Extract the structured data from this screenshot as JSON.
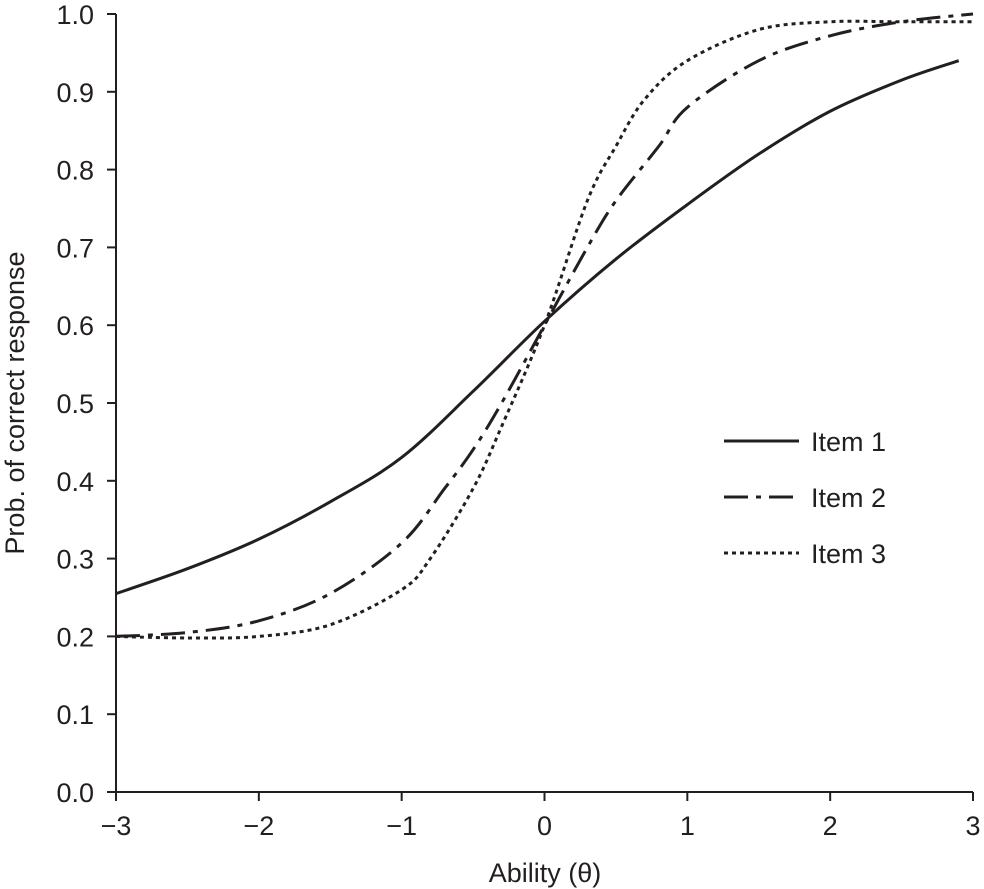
{
  "chart_data": {
    "type": "line",
    "title": "",
    "xlabel": "Ability (θ)",
    "ylabel": "Prob. of correct response",
    "xlim": [
      -3,
      3
    ],
    "ylim": [
      0,
      1
    ],
    "x_ticks": [
      -3,
      -2,
      -1,
      0,
      1,
      2,
      3
    ],
    "x_tick_labels": [
      "−3",
      "−2",
      "−1",
      "0",
      "1",
      "2",
      "3"
    ],
    "y_ticks": [
      0,
      0.1,
      0.2,
      0.3,
      0.4,
      0.5,
      0.6,
      0.7,
      0.8,
      0.9,
      1.0
    ],
    "y_tick_labels": [
      "0.0",
      "0.1",
      "0.2",
      "0.3",
      "0.4",
      "0.5",
      "0.6",
      "0.7",
      "0.8",
      "0.9",
      "1.0"
    ],
    "grid": false,
    "legend_position": "right",
    "series": [
      {
        "name": "Item 1",
        "style": "solid",
        "x": [
          -3,
          -2.5,
          -2,
          -1.5,
          -1,
          -0.5,
          0,
          0.5,
          1,
          1.5,
          2,
          2.5,
          2.9
        ],
        "y": [
          0.255,
          0.287,
          0.325,
          0.373,
          0.43,
          0.515,
          0.605,
          0.685,
          0.755,
          0.82,
          0.875,
          0.915,
          0.94
        ]
      },
      {
        "name": "Item 2",
        "style": "dashdot",
        "x": [
          -3,
          -2.5,
          -2,
          -1.5,
          -1,
          -0.7,
          -0.5,
          -0.3,
          0,
          0.3,
          0.5,
          0.8,
          1,
          1.5,
          2,
          2.5,
          3
        ],
        "y": [
          0.2,
          0.205,
          0.22,
          0.255,
          0.32,
          0.39,
          0.44,
          0.5,
          0.6,
          0.7,
          0.76,
          0.83,
          0.88,
          0.94,
          0.972,
          0.99,
          1.0
        ]
      },
      {
        "name": "Item 3",
        "style": "dotted",
        "x": [
          -3,
          -2.5,
          -2,
          -1.5,
          -1,
          -0.8,
          -0.5,
          -0.3,
          0,
          0.3,
          0.5,
          0.7,
          1,
          1.5,
          2,
          2.5,
          3
        ],
        "y": [
          0.2,
          0.198,
          0.2,
          0.215,
          0.26,
          0.3,
          0.39,
          0.47,
          0.6,
          0.76,
          0.83,
          0.89,
          0.94,
          0.98,
          0.99,
          0.99,
          0.99
        ]
      }
    ]
  }
}
